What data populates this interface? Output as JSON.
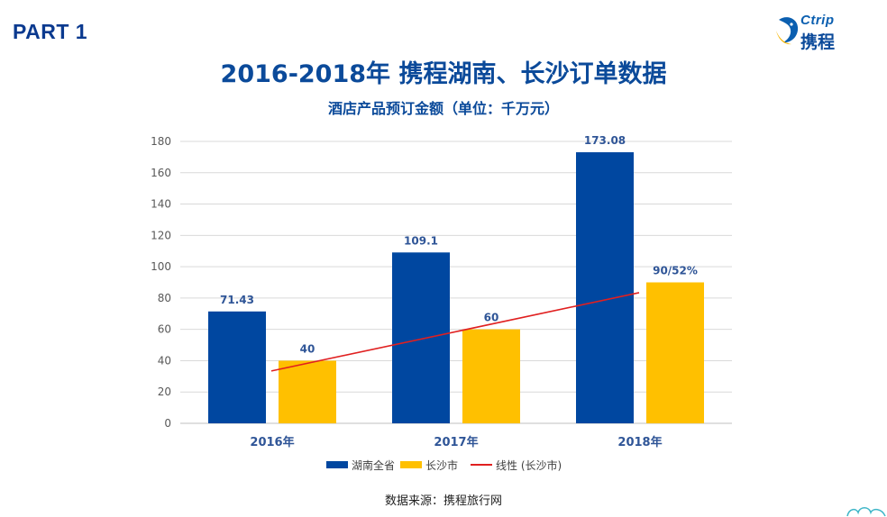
{
  "header": {
    "part_label": "PART 1",
    "logo_en": "Ctrip",
    "logo_cn": "携程"
  },
  "chart_data": {
    "type": "bar",
    "title": "2016-2018年 携程湖南、长沙订单数据",
    "subtitle": "酒店产品预订金额（单位：千万元）",
    "categories": [
      "2016年",
      "2017年",
      "2018年"
    ],
    "series": [
      {
        "name": "湖南全省",
        "values": [
          71.43,
          109.1,
          173.08
        ],
        "labels": [
          "71.43",
          "109.1",
          "173.08"
        ],
        "color": "#0047a0"
      },
      {
        "name": "长沙市",
        "values": [
          40,
          60,
          90
        ],
        "labels": [
          "40",
          "60",
          "90/52%"
        ],
        "color": "#ffc000"
      }
    ],
    "trendline": {
      "name": "线性 (长沙市)",
      "of_series": "长沙市",
      "color": "#e02020"
    },
    "ylim": [
      0,
      180
    ],
    "yticks": [
      "0",
      "20",
      "40",
      "60",
      "80",
      "100",
      "120",
      "140",
      "160",
      "180"
    ],
    "grid": true,
    "legend_position": "bottom"
  },
  "footer": {
    "source": "数据来源：携程旅行网"
  }
}
